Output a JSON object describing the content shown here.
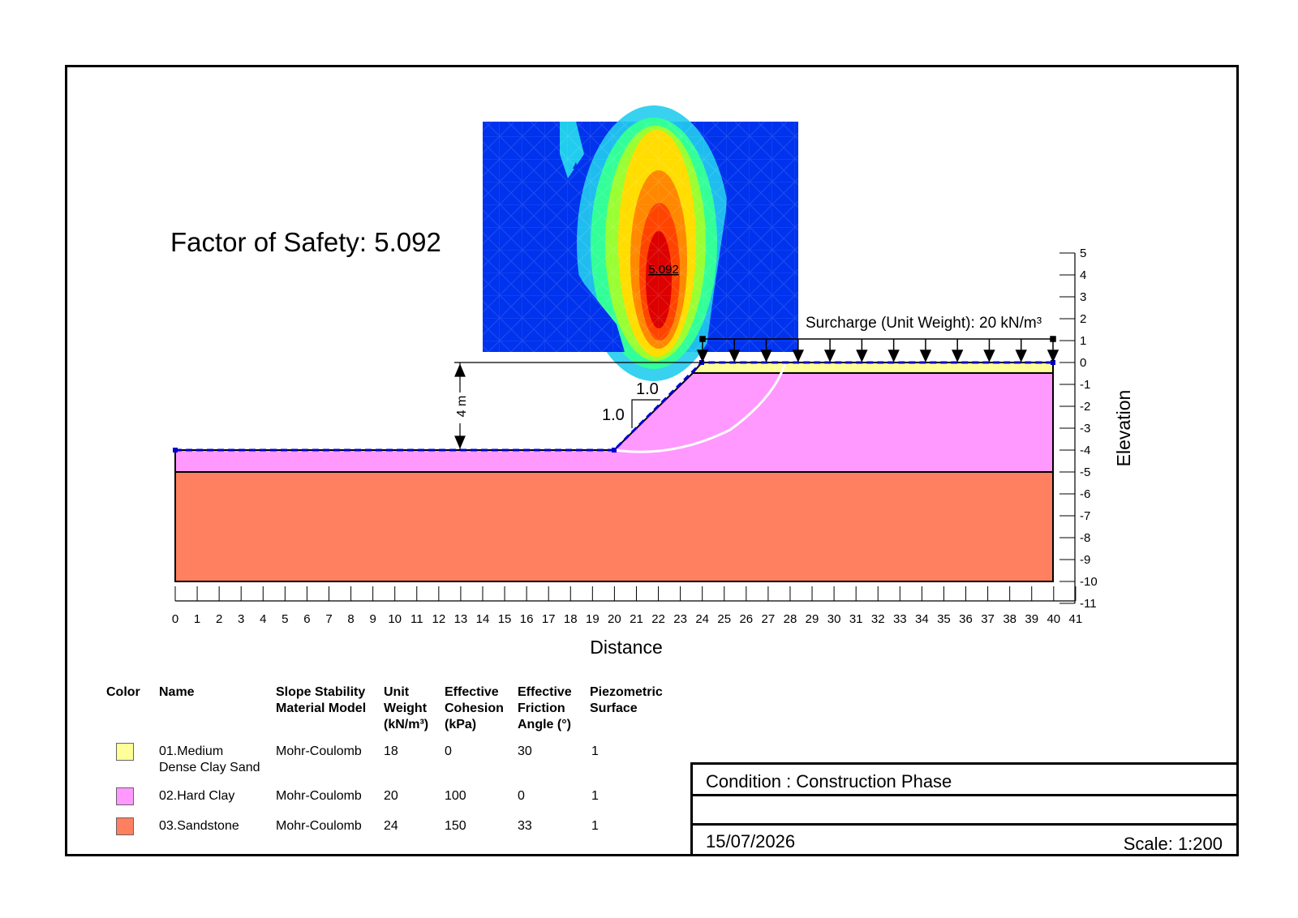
{
  "factor_of_safety_title": "Factor of Safety: 5.092",
  "fos_contour_label": "5.092",
  "surcharge_label": "Surcharge (Unit Weight): 20 kN/m³",
  "height_dim_label": "4 m",
  "slope_ratio": {
    "vertical": "1.0",
    "horizontal": "1.0"
  },
  "x_axis": {
    "label": "Distance",
    "min": 0,
    "max": 41,
    "ticks": [
      "0",
      "1",
      "2",
      "3",
      "4",
      "5",
      "6",
      "7",
      "8",
      "9",
      "10",
      "11",
      "12",
      "13",
      "14",
      "15",
      "16",
      "17",
      "18",
      "19",
      "20",
      "21",
      "22",
      "23",
      "24",
      "25",
      "26",
      "27",
      "28",
      "29",
      "30",
      "31",
      "32",
      "33",
      "34",
      "35",
      "36",
      "37",
      "38",
      "39",
      "40",
      "41"
    ]
  },
  "y_axis": {
    "label": "Elevation",
    "min": -11,
    "max": 5,
    "ticks": [
      "5",
      "4",
      "3",
      "2",
      "1",
      "0",
      "-1",
      "-2",
      "-3",
      "-4",
      "-5",
      "-6",
      "-7",
      "-8",
      "-9",
      "-10",
      "-11"
    ]
  },
  "geometry": {
    "toe_elevation": -4,
    "crest_elevation": 0,
    "toe_x": 20,
    "crest_x": 24,
    "model_left_x": 0,
    "model_right_x": 40,
    "layer1_bottom": -0.5,
    "layer2_bottom": -5,
    "layer3_bottom": -10
  },
  "legend": {
    "headers": [
      "Color",
      "Name",
      "Slope Stability\nMaterial Model",
      "Unit\nWeight\n(kN/m³)",
      "Effective\nCohesion\n(kPa)",
      "Effective\nFriction\nAngle (°)",
      "Piezometric\nSurface"
    ],
    "rows": [
      {
        "color": "#ffff99",
        "name": "01.Medium\nDense Clay Sand",
        "model": "Mohr-Coulomb",
        "unit_weight": "18",
        "cohesion": "0",
        "friction": "30",
        "piezo": "1"
      },
      {
        "color": "#ff99ff",
        "name": "02.Hard Clay",
        "model": "Mohr-Coulomb",
        "unit_weight": "20",
        "cohesion": "100",
        "friction": "0",
        "piezo": "1"
      },
      {
        "color": "#ff8060",
        "name": "03.Sandstone",
        "model": "Mohr-Coulomb",
        "unit_weight": "24",
        "cohesion": "150",
        "friction": "33",
        "piezo": "1"
      }
    ]
  },
  "title_block": {
    "condition": "Condition : Construction Phase",
    "date": "15/07/2026",
    "scale": "Scale: 1:200"
  },
  "colors": {
    "layer1": "#ffff99",
    "layer2": "#ff99ff",
    "layer3": "#ff8060",
    "piezometric_line": "#0000cc",
    "slip_surface": "#ffffff"
  }
}
